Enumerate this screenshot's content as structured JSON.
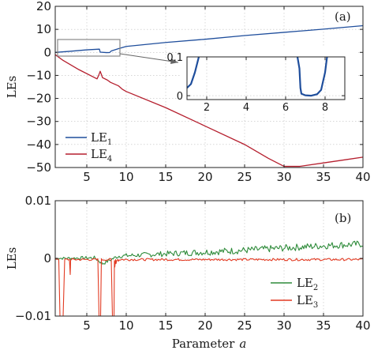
{
  "chart_data": [
    {
      "panel_label": "(a)",
      "type": "line",
      "ylabel": "LEs",
      "xlabel": "",
      "xlim": [
        1,
        40
      ],
      "ylim": [
        -50,
        20
      ],
      "xticks": [
        5,
        10,
        15,
        20,
        25,
        30,
        35,
        40
      ],
      "xtick_labels": [
        "5",
        "10",
        "15",
        "20",
        "25",
        "30",
        "35",
        "40"
      ],
      "yticks": [
        -50,
        -40,
        -30,
        -20,
        -10,
        0,
        10,
        20
      ],
      "ytick_labels": [
        "−50",
        "−40",
        "−30",
        "−20",
        "−10",
        "0",
        "10",
        "20"
      ],
      "grid": true,
      "legend_position": "bottom-left",
      "series": [
        {
          "name": "LE1",
          "label_main": "LE",
          "label_sub": "1",
          "color": "#1f4e9c",
          "points": [
            [
              1,
              0
            ],
            [
              3,
              0.5
            ],
            [
              5,
              1.1
            ],
            [
              6.6,
              1.4
            ],
            [
              6.7,
              0.1
            ],
            [
              7.5,
              -0.1
            ],
            [
              7.9,
              -0.05
            ],
            [
              8.1,
              0.6
            ],
            [
              9,
              1.6
            ],
            [
              10,
              2.6
            ],
            [
              15,
              4.3
            ],
            [
              20,
              5.7
            ],
            [
              25,
              7.3
            ],
            [
              30,
              8.7
            ],
            [
              35,
              10.1
            ],
            [
              40,
              11.6
            ]
          ]
        },
        {
          "name": "LE4",
          "label_main": "LE",
          "label_sub": "4",
          "color": "#b51f2e",
          "points": [
            [
              1,
              -1
            ],
            [
              2,
              -3.5
            ],
            [
              4,
              -7.5
            ],
            [
              6.3,
              -11.5
            ],
            [
              6.5,
              -10
            ],
            [
              6.7,
              -8.2
            ],
            [
              7,
              -11
            ],
            [
              7.6,
              -12
            ],
            [
              8,
              -13
            ],
            [
              9,
              -14.5
            ],
            [
              9.5,
              -16
            ],
            [
              10,
              -17
            ],
            [
              15,
              -24
            ],
            [
              20,
              -32
            ],
            [
              25,
              -40
            ],
            [
              28,
              -46
            ],
            [
              30,
              -49.5
            ],
            [
              32,
              -49.5
            ],
            [
              35,
              -48
            ],
            [
              38,
              -46.5
            ],
            [
              40,
              -45.5
            ]
          ]
        }
      ],
      "inset": {
        "xlim": [
          1,
          9
        ],
        "ylim": [
          -0.01,
          0.1
        ],
        "xticks": [
          2,
          4,
          6,
          8
        ],
        "xtick_labels": [
          "2",
          "4",
          "6",
          "8"
        ],
        "yticks": [
          0,
          0.1
        ],
        "ytick_labels": [
          "0",
          "0.1"
        ],
        "series_points": [
          [
            1,
            0.02
          ],
          [
            1.2,
            0.03
          ],
          [
            1.4,
            0.06
          ],
          [
            1.6,
            0.1
          ],
          [
            1.7,
            0.13
          ],
          [
            6.5,
            0.13
          ],
          [
            6.7,
            0.07
          ],
          [
            6.75,
            0.02
          ],
          [
            6.8,
            0.005
          ],
          [
            7,
            0.001
          ],
          [
            7.3,
            0
          ],
          [
            7.6,
            0.004
          ],
          [
            7.8,
            0.015
          ],
          [
            8,
            0.06
          ],
          [
            8.1,
            0.1
          ],
          [
            8.2,
            0.13
          ]
        ]
      }
    },
    {
      "panel_label": "(b)",
      "type": "line",
      "ylabel": "LEs",
      "xlabel": "Parameter",
      "xlabel_var": "a",
      "xlim": [
        1,
        40
      ],
      "ylim": [
        -0.01,
        0.01
      ],
      "xticks": [
        5,
        10,
        15,
        20,
        25,
        30,
        35,
        40
      ],
      "xtick_labels": [
        "5",
        "10",
        "15",
        "20",
        "25",
        "30",
        "35",
        "40"
      ],
      "yticks": [
        -0.01,
        0,
        0.01
      ],
      "ytick_labels": [
        "−0.01",
        "0",
        "0.01"
      ],
      "grid": true,
      "legend_position": "bottom-right",
      "series": [
        {
          "name": "LE2",
          "label_main": "LE",
          "label_sub": "2",
          "color": "#2e8b3a",
          "trend": [
            [
              1,
              0
            ],
            [
              6,
              0.0001
            ],
            [
              7,
              -0.0009
            ],
            [
              9,
              0.0004
            ],
            [
              15,
              0.0008
            ],
            [
              20,
              0.0011
            ],
            [
              25,
              0.0014
            ],
            [
              30,
              0.0018
            ],
            [
              35,
              0.0022
            ],
            [
              40,
              0.0025
            ]
          ],
          "noise": 0.0006
        },
        {
          "name": "LE3",
          "label_main": "LE",
          "label_sub": "3",
          "color": "#e23a22",
          "base": -0.0002,
          "dips": [
            [
              1.6,
              -0.01
            ],
            [
              2.0,
              -0.01
            ],
            [
              2.9,
              -0.0028
            ],
            [
              6.4,
              -0.0001
            ],
            [
              6.55,
              -0.01
            ],
            [
              6.75,
              -0.01
            ],
            [
              6.9,
              -0.0003
            ],
            [
              8.1,
              -0.0002
            ],
            [
              8.25,
              -0.01
            ],
            [
              8.45,
              -0.01
            ],
            [
              8.55,
              -0.0015
            ],
            [
              8.7,
              -0.0009
            ],
            [
              9,
              -0.0005
            ]
          ]
        }
      ]
    }
  ]
}
